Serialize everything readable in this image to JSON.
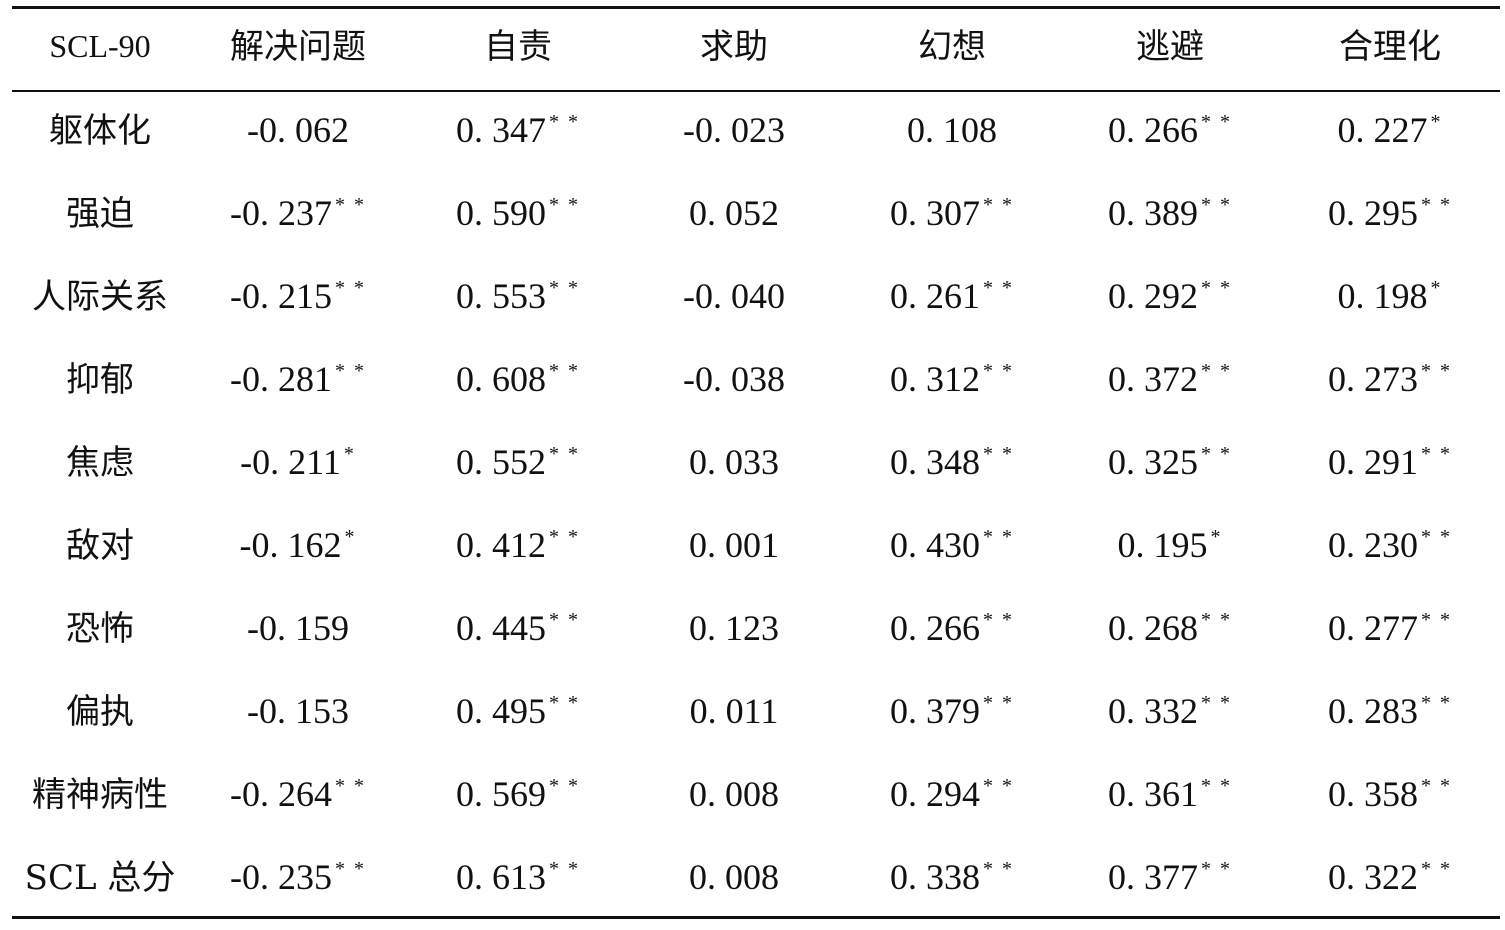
{
  "table": {
    "headers": [
      "SCL-90",
      "解决问题",
      "自责",
      "求助",
      "幻想",
      "逃避",
      "合理化"
    ],
    "rows": [
      {
        "label": "躯体化",
        "cells": [
          {
            "v": "-0. 062",
            "s": ""
          },
          {
            "v": "0. 347",
            "s": "* *"
          },
          {
            "v": "-0. 023",
            "s": ""
          },
          {
            "v": "0. 108",
            "s": ""
          },
          {
            "v": "0. 266",
            "s": "* *"
          },
          {
            "v": "0. 227",
            "s": "*"
          }
        ]
      },
      {
        "label": "强迫",
        "cells": [
          {
            "v": "-0. 237",
            "s": "* *"
          },
          {
            "v": "0. 590",
            "s": "* *"
          },
          {
            "v": "0. 052",
            "s": ""
          },
          {
            "v": "0. 307",
            "s": "* *"
          },
          {
            "v": "0. 389",
            "s": "* *"
          },
          {
            "v": "0. 295",
            "s": "* *"
          }
        ]
      },
      {
        "label": "人际关系",
        "cells": [
          {
            "v": "-0. 215",
            "s": "* *"
          },
          {
            "v": "0. 553",
            "s": "* *"
          },
          {
            "v": "-0. 040",
            "s": ""
          },
          {
            "v": "0. 261",
            "s": "* *"
          },
          {
            "v": "0. 292",
            "s": "* *"
          },
          {
            "v": "0. 198",
            "s": "*"
          }
        ]
      },
      {
        "label": "抑郁",
        "cells": [
          {
            "v": "-0. 281",
            "s": "* *"
          },
          {
            "v": "0. 608",
            "s": "* *"
          },
          {
            "v": "-0. 038",
            "s": ""
          },
          {
            "v": "0. 312",
            "s": "* *"
          },
          {
            "v": "0. 372",
            "s": "* *"
          },
          {
            "v": "0. 273",
            "s": "* *"
          }
        ]
      },
      {
        "label": "焦虑",
        "cells": [
          {
            "v": "-0. 211",
            "s": "*"
          },
          {
            "v": "0. 552",
            "s": "* *"
          },
          {
            "v": "0. 033",
            "s": ""
          },
          {
            "v": "0. 348",
            "s": "* *"
          },
          {
            "v": "0. 325",
            "s": "* *"
          },
          {
            "v": "0. 291",
            "s": "* *"
          }
        ]
      },
      {
        "label": "敌对",
        "cells": [
          {
            "v": "-0. 162",
            "s": "*"
          },
          {
            "v": "0. 412",
            "s": "* *"
          },
          {
            "v": "0. 001",
            "s": ""
          },
          {
            "v": "0. 430",
            "s": "* *"
          },
          {
            "v": "0. 195",
            "s": "*"
          },
          {
            "v": "0. 230",
            "s": "* *"
          }
        ]
      },
      {
        "label": "恐怖",
        "cells": [
          {
            "v": "-0. 159",
            "s": ""
          },
          {
            "v": "0. 445",
            "s": "* *"
          },
          {
            "v": "0. 123",
            "s": ""
          },
          {
            "v": "0. 266",
            "s": "* *"
          },
          {
            "v": "0. 268",
            "s": "* *"
          },
          {
            "v": "0. 277",
            "s": "* *"
          }
        ]
      },
      {
        "label": "偏执",
        "cells": [
          {
            "v": "-0. 153",
            "s": ""
          },
          {
            "v": "0. 495",
            "s": "* *"
          },
          {
            "v": "0. 011",
            "s": ""
          },
          {
            "v": "0. 379",
            "s": "* *"
          },
          {
            "v": "0. 332",
            "s": "* *"
          },
          {
            "v": "0. 283",
            "s": "* *"
          }
        ]
      },
      {
        "label": "精神病性",
        "cells": [
          {
            "v": "-0. 264",
            "s": "* *"
          },
          {
            "v": "0. 569",
            "s": "* *"
          },
          {
            "v": "0. 008",
            "s": ""
          },
          {
            "v": "0. 294",
            "s": "* *"
          },
          {
            "v": "0. 361",
            "s": "* *"
          },
          {
            "v": "0. 358",
            "s": "* *"
          }
        ]
      },
      {
        "label": "SCL 总分",
        "cells": [
          {
            "v": "-0. 235",
            "s": "* *"
          },
          {
            "v": "0. 613",
            "s": "* *"
          },
          {
            "v": "0. 008",
            "s": ""
          },
          {
            "v": "0. 338",
            "s": "* *"
          },
          {
            "v": "0. 377",
            "s": "* *"
          },
          {
            "v": "0. 322",
            "s": "* *"
          }
        ]
      }
    ]
  }
}
